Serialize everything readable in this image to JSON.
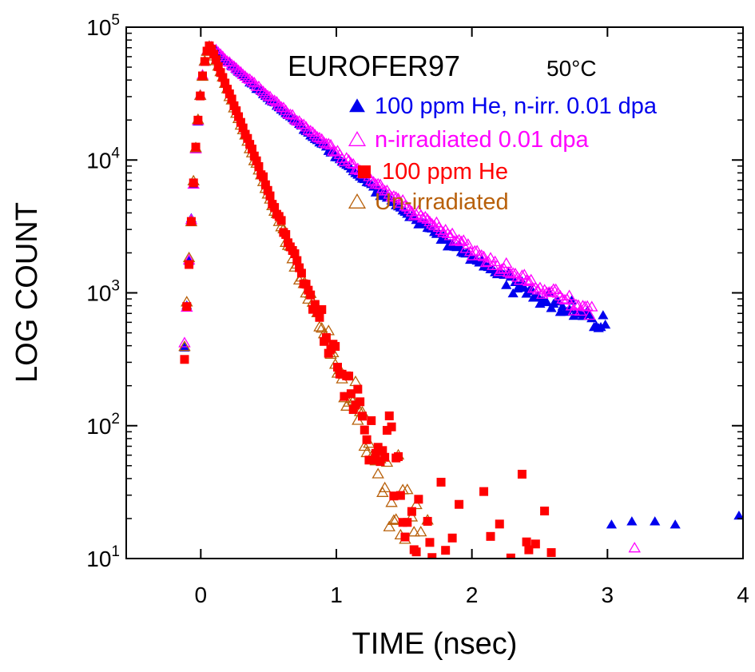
{
  "chart_data": {
    "type": "scatter",
    "title": "EUROFER97",
    "subtitle": "50°C",
    "xlabel": "TIME (nsec)",
    "ylabel": "LOG COUNT",
    "xlim": [
      -0.55,
      4
    ],
    "ylim": [
      10,
      100000
    ],
    "yscale": "log",
    "xticks": [
      "0",
      "1",
      "2",
      "3",
      "4"
    ],
    "yticks": [
      {
        "base": "10",
        "exp": "1"
      },
      {
        "base": "10",
        "exp": "2"
      },
      {
        "base": "10",
        "exp": "3"
      },
      {
        "base": "10",
        "exp": "4"
      },
      {
        "base": "10",
        "exp": "5"
      }
    ],
    "grid": false,
    "legend_position": "top-right",
    "series": [
      {
        "name": "100 ppm He, n-irr. 0.01 dpa",
        "marker": "filled-triangle",
        "color": "#0000ee",
        "profile": {
          "start": -0.12,
          "peak_t": 0.07,
          "peak": 72000,
          "rise": 0.055,
          "t1": 0.46,
          "t2": 1.65,
          "frac2": 0.035,
          "bg": 12,
          "end": 3.0,
          "step": 0.0166,
          "noise": 0.25
        },
        "extra_points": [
          [
            3.03,
            18
          ],
          [
            3.18,
            19
          ],
          [
            3.35,
            19
          ],
          [
            3.5,
            18
          ],
          [
            3.97,
            21
          ]
        ]
      },
      {
        "name": "n-irradiated 0.01 dpa",
        "marker": "open-triangle",
        "color": "#ff00ff",
        "profile": {
          "start": -0.12,
          "peak_t": 0.07,
          "peak": 72000,
          "rise": 0.055,
          "t1": 0.48,
          "t2": 1.78,
          "frac2": 0.035,
          "bg": 11,
          "end": 2.9,
          "step": 0.0166,
          "noise": 0.27
        },
        "extra_points": [
          [
            3.2,
            12
          ]
        ]
      },
      {
        "name": "100 ppm He",
        "marker": "filled-square",
        "color": "#ff0000",
        "profile": {
          "start": -0.12,
          "peak_t": 0.07,
          "peak": 72000,
          "rise": 0.055,
          "t1": 0.171,
          "t2": 0.6,
          "frac2": 0.0004,
          "bg": 4,
          "end": 2.6,
          "step": 0.0166,
          "noise": 0.35
        },
        "extra_points": []
      },
      {
        "name": "Un-irradiated",
        "marker": "open-triangle",
        "color": "#b8600a",
        "profile": {
          "start": -0.12,
          "peak_t": 0.07,
          "peak": 72000,
          "rise": 0.055,
          "t1": 0.166,
          "t2": 0.55,
          "frac2": 0.0002,
          "bg": 3,
          "end": 1.7,
          "step": 0.0166,
          "noise": 0.3
        },
        "extra_points": []
      }
    ]
  }
}
